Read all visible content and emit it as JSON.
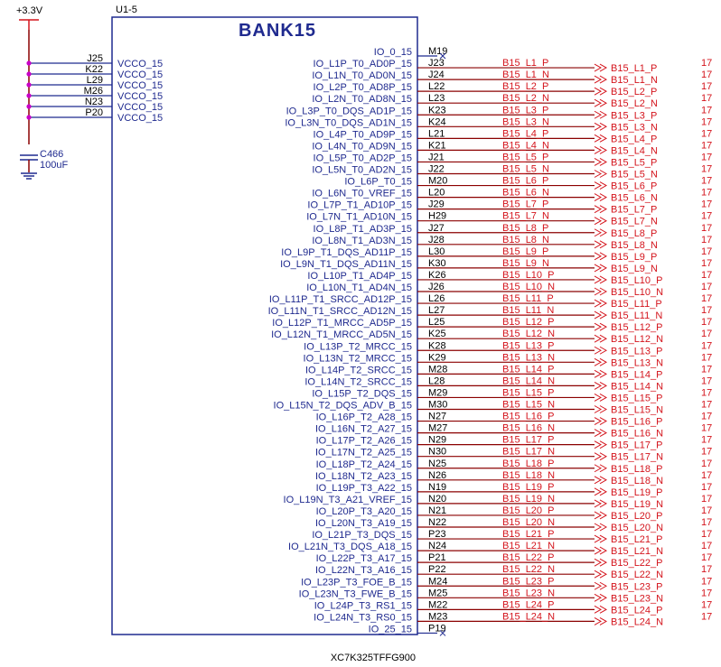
{
  "power": {
    "label": "+3.3V"
  },
  "part": {
    "refdes": "U1-5",
    "bank_title": "BANK15",
    "part_number": "XC7K325TFFG900"
  },
  "vcco_pins": [
    {
      "pin": "J25",
      "name": "VCCO_15"
    },
    {
      "pin": "K22",
      "name": "VCCO_15"
    },
    {
      "pin": "L29",
      "name": "VCCO_15"
    },
    {
      "pin": "M26",
      "name": "VCCO_15"
    },
    {
      "pin": "N23",
      "name": "VCCO_15"
    },
    {
      "pin": "P20",
      "name": "VCCO_15"
    }
  ],
  "capacitor": {
    "refdes": "C466",
    "value": "100uF"
  },
  "io_pins": [
    {
      "name": "IO_0_15",
      "pin": "M19",
      "net": ""
    },
    {
      "name": "IO_L1P_T0_AD0P_15",
      "pin": "J23",
      "net": "B15_L1_P"
    },
    {
      "name": "IO_L1N_T0_AD0N_15",
      "pin": "J24",
      "net": "B15_L1_N"
    },
    {
      "name": "IO_L2P_T0_AD8P_15",
      "pin": "L22",
      "net": "B15_L2_P"
    },
    {
      "name": "IO_L2N_T0_AD8N_15",
      "pin": "L23",
      "net": "B15_L2_N"
    },
    {
      "name": "IO_L3P_T0_DQS_AD1P_15",
      "pin": "K23",
      "net": "B15_L3_P"
    },
    {
      "name": "IO_L3N_T0_DQS_AD1N_15",
      "pin": "K24",
      "net": "B15_L3_N"
    },
    {
      "name": "IO_L4P_T0_AD9P_15",
      "pin": "L21",
      "net": "B15_L4_P"
    },
    {
      "name": "IO_L4N_T0_AD9N_15",
      "pin": "K21",
      "net": "B15_L4_N"
    },
    {
      "name": "IO_L5P_T0_AD2P_15",
      "pin": "J21",
      "net": "B15_L5_P"
    },
    {
      "name": "IO_L5N_T0_AD2N_15",
      "pin": "J22",
      "net": "B15_L5_N"
    },
    {
      "name": "IO_L6P_T0_15",
      "pin": "M20",
      "net": "B15_L6_P"
    },
    {
      "name": "IO_L6N_T0_VREF_15",
      "pin": "L20",
      "net": "B15_L6_N"
    },
    {
      "name": "IO_L7P_T1_AD10P_15",
      "pin": "J29",
      "net": "B15_L7_P"
    },
    {
      "name": "IO_L7N_T1_AD10N_15",
      "pin": "H29",
      "net": "B15_L7_N"
    },
    {
      "name": "IO_L8P_T1_AD3P_15",
      "pin": "J27",
      "net": "B15_L8_P"
    },
    {
      "name": "IO_L8N_T1_AD3N_15",
      "pin": "J28",
      "net": "B15_L8_N"
    },
    {
      "name": "IO_L9P_T1_DQS_AD11P_15",
      "pin": "L30",
      "net": "B15_L9_P"
    },
    {
      "name": "IO_L9N_T1_DQS_AD11N_15",
      "pin": "K30",
      "net": "B15_L9_N"
    },
    {
      "name": "IO_L10P_T1_AD4P_15",
      "pin": "K26",
      "net": "B15_L10_P"
    },
    {
      "name": "IO_L10N_T1_AD4N_15",
      "pin": "J26",
      "net": "B15_L10_N"
    },
    {
      "name": "IO_L11P_T1_SRCC_AD12P_15",
      "pin": "L26",
      "net": "B15_L11_P"
    },
    {
      "name": "IO_L11N_T1_SRCC_AD12N_15",
      "pin": "L27",
      "net": "B15_L11_N"
    },
    {
      "name": "IO_L12P_T1_MRCC_AD5P_15",
      "pin": "L25",
      "net": "B15_L12_P"
    },
    {
      "name": "IO_L12N_T1_MRCC_AD5N_15",
      "pin": "K25",
      "net": "B15_L12_N"
    },
    {
      "name": "IO_L13P_T2_MRCC_15",
      "pin": "K28",
      "net": "B15_L13_P"
    },
    {
      "name": "IO_L13N_T2_MRCC_15",
      "pin": "K29",
      "net": "B15_L13_N"
    },
    {
      "name": "IO_L14P_T2_SRCC_15",
      "pin": "M28",
      "net": "B15_L14_P"
    },
    {
      "name": "IO_L14N_T2_SRCC_15",
      "pin": "L28",
      "net": "B15_L14_N"
    },
    {
      "name": "IO_L15P_T2_DQS_15",
      "pin": "M29",
      "net": "B15_L15_P"
    },
    {
      "name": "IO_L15N_T2_DQS_ADV_B_15",
      "pin": "M30",
      "net": "B15_L15_N"
    },
    {
      "name": "IO_L16P_T2_A28_15",
      "pin": "N27",
      "net": "B15_L16_P"
    },
    {
      "name": "IO_L16N_T2_A27_15",
      "pin": "M27",
      "net": "B15_L16_N"
    },
    {
      "name": "IO_L17P_T2_A26_15",
      "pin": "N29",
      "net": "B15_L17_P"
    },
    {
      "name": "IO_L17N_T2_A25_15",
      "pin": "N30",
      "net": "B15_L17_N"
    },
    {
      "name": "IO_L18P_T2_A24_15",
      "pin": "N25",
      "net": "B15_L18_P"
    },
    {
      "name": "IO_L18N_T2_A23_15",
      "pin": "N26",
      "net": "B15_L18_N"
    },
    {
      "name": "IO_L19P_T3_A22_15",
      "pin": "N19",
      "net": "B15_L19_P"
    },
    {
      "name": "IO_L19N_T3_A21_VREF_15",
      "pin": "N20",
      "net": "B15_L19_N"
    },
    {
      "name": "IO_L20P_T3_A20_15",
      "pin": "N21",
      "net": "B15_L20_P"
    },
    {
      "name": "IO_L20N_T3_A19_15",
      "pin": "N22",
      "net": "B15_L20_N"
    },
    {
      "name": "IO_L21P_T3_DQS_15",
      "pin": "P23",
      "net": "B15_L21_P"
    },
    {
      "name": "IO_L21N_T3_DQS_A18_15",
      "pin": "N24",
      "net": "B15_L21_N"
    },
    {
      "name": "IO_L22P_T3_A17_15",
      "pin": "P21",
      "net": "B15_L22_P"
    },
    {
      "name": "IO_L22N_T3_A16_15",
      "pin": "P22",
      "net": "B15_L22_N"
    },
    {
      "name": "IO_L23P_T3_FOE_B_15",
      "pin": "M24",
      "net": "B15_L23_P"
    },
    {
      "name": "IO_L23N_T3_FWE_B_15",
      "pin": "M25",
      "net": "B15_L23_N"
    },
    {
      "name": "IO_L24P_T3_RS1_15",
      "pin": "M22",
      "net": "B15_L24_P"
    },
    {
      "name": "IO_L24N_T3_RS0_15",
      "pin": "M23",
      "net": "B15_L24_N"
    },
    {
      "name": "IO_25_15",
      "pin": "P19",
      "net": ""
    }
  ],
  "offpage_sheet": "17",
  "colors": {
    "symbol": "#1f2a8f",
    "wire": "#8b0000",
    "net_label": "#d4141c",
    "junction": "#c800c8",
    "power_symbol": "#d4141c",
    "text": "#000000"
  }
}
